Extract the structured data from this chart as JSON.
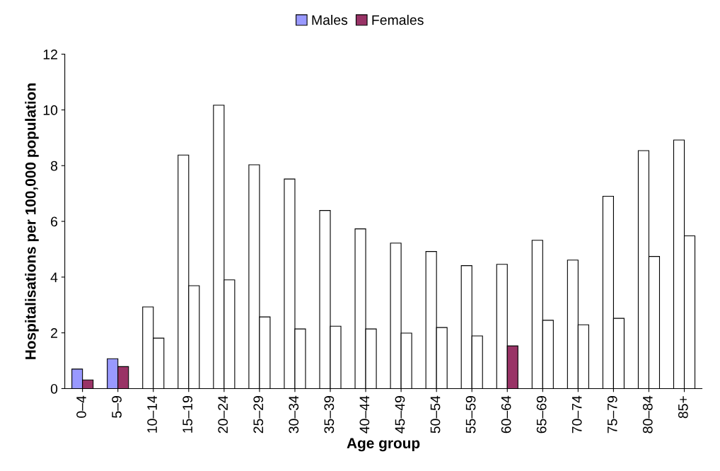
{
  "chart_data": {
    "type": "bar",
    "xlabel": "Age group",
    "ylabel": "Hospitalisations per 100,000 population",
    "categories": [
      "0–4",
      "5–9",
      "10–14",
      "15–19",
      "20–24",
      "25–29",
      "30–34",
      "35–39",
      "40–44",
      "45–49",
      "50–54",
      "55–59",
      "60–64",
      "65–69",
      "70–74",
      "75–79",
      "80–84",
      "85+"
    ],
    "series": [
      {
        "name": "Males",
        "color": "#9999ff",
        "values": [
          0.7,
          1.07,
          2.93,
          8.38,
          10.17,
          8.03,
          7.52,
          6.39,
          5.73,
          5.22,
          4.92,
          4.41,
          4.46,
          5.32,
          4.61,
          6.9,
          8.54,
          8.92
        ],
        "colors": [
          "#9999ff",
          "#9999ff",
          "#ffffff",
          "#ffffff",
          "#ffffff",
          "#ffffff",
          "#ffffff",
          "#ffffff",
          "#ffffff",
          "#ffffff",
          "#ffffff",
          "#ffffff",
          "#ffffff",
          "#ffffff",
          "#ffffff",
          "#ffffff",
          "#ffffff",
          "#ffffff"
        ]
      },
      {
        "name": "Females",
        "color": "#993366",
        "values": [
          0.31,
          0.79,
          1.81,
          3.69,
          3.9,
          2.57,
          2.14,
          2.24,
          2.14,
          1.99,
          2.19,
          1.89,
          1.53,
          2.45,
          2.29,
          2.52,
          4.74,
          5.48
        ],
        "colors": [
          "#993366",
          "#993366",
          "#ffffff",
          "#ffffff",
          "#ffffff",
          "#ffffff",
          "#ffffff",
          "#ffffff",
          "#ffffff",
          "#ffffff",
          "#ffffff",
          "#ffffff",
          "#993366",
          "#ffffff",
          "#ffffff",
          "#ffffff",
          "#ffffff",
          "#ffffff"
        ]
      }
    ],
    "ylim": [
      0,
      12
    ],
    "yticks": [
      0,
      2,
      4,
      6,
      8,
      10,
      12
    ],
    "grid": false,
    "legend": "top"
  }
}
